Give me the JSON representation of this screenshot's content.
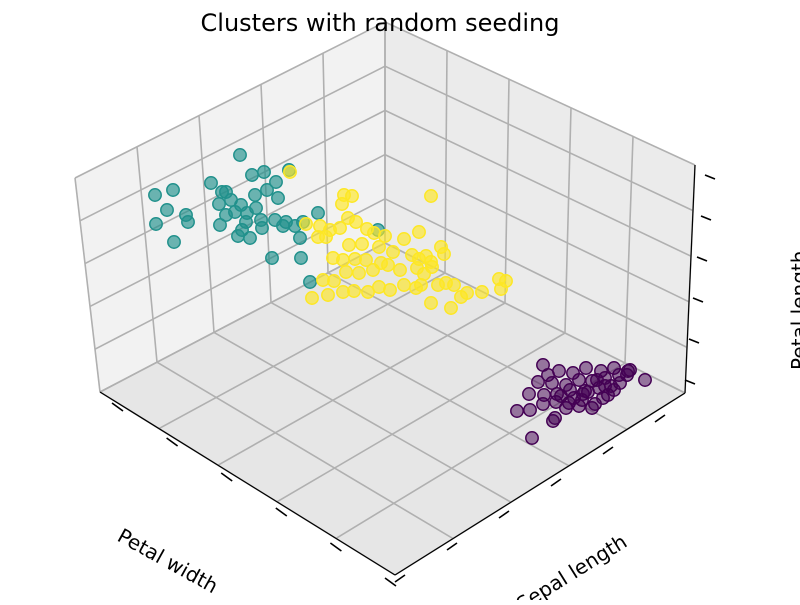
{
  "chart_data": {
    "type": "scatter",
    "title": "Clusters with random seeding",
    "xlabel": "Petal width",
    "ylabel": "Sepal length",
    "zlabel": "Petal length",
    "projection": "3d",
    "grid": true,
    "legend": "none",
    "colors": {
      "cluster_0": "#440154",
      "cluster_1": "#21918c",
      "cluster_2": "#fde725",
      "pane_light": "#f2f2f2",
      "pane_mid": "#ebebeb",
      "pane_dark": "#e6e6e6",
      "grid": "#b0b0b0"
    },
    "series": [
      {
        "color": "#440154",
        "points": [
          [
            543,
            365
          ],
          [
            559,
            371
          ],
          [
            573,
            373
          ],
          [
            586,
            368
          ],
          [
            601,
            371
          ],
          [
            614,
            368
          ],
          [
            628,
            371
          ],
          [
            645,
            380
          ],
          [
            538,
            382
          ],
          [
            552,
            383
          ],
          [
            566,
            385
          ],
          [
            579,
            380
          ],
          [
            592,
            381
          ],
          [
            605,
            378
          ],
          [
            619,
            375
          ],
          [
            630,
            370
          ],
          [
            529,
            394
          ],
          [
            544,
            395
          ],
          [
            557,
            394
          ],
          [
            570,
            390
          ],
          [
            585,
            391
          ],
          [
            599,
            388
          ],
          [
            611,
            386
          ],
          [
            620,
            383
          ],
          [
            517,
            411
          ],
          [
            530,
            410
          ],
          [
            543,
            404
          ],
          [
            556,
            402
          ],
          [
            569,
            403
          ],
          [
            582,
            400
          ],
          [
            595,
            404
          ],
          [
            608,
            395
          ],
          [
            555,
            418
          ],
          [
            566,
            408
          ],
          [
            579,
            406
          ],
          [
            592,
            408
          ],
          [
            603,
            398
          ],
          [
            614,
            390
          ],
          [
            597,
            380
          ],
          [
            574,
            398
          ],
          [
            532,
            438
          ],
          [
            553,
            421
          ],
          [
            588,
            392
          ],
          [
            561,
            396
          ],
          [
            605,
            386
          ],
          [
            548,
            375
          ],
          [
            627,
            375
          ],
          [
            583,
            394
          ]
        ]
      },
      {
        "color": "#21918c",
        "points": [
          [
            240,
            155
          ],
          [
            252,
            175
          ],
          [
            264,
            172
          ],
          [
            276,
            182
          ],
          [
            289,
            170
          ],
          [
            155,
            195
          ],
          [
            173,
            190
          ],
          [
            167,
            210
          ],
          [
            186,
            215
          ],
          [
            156,
            224
          ],
          [
            174,
            242
          ],
          [
            188,
            222
          ],
          [
            211,
            183
          ],
          [
            222,
            192
          ],
          [
            226,
            192
          ],
          [
            219,
            204
          ],
          [
            231,
            200
          ],
          [
            241,
            205
          ],
          [
            255,
            195
          ],
          [
            267,
            190
          ],
          [
            278,
            198
          ],
          [
            256,
            208
          ],
          [
            235,
            212
          ],
          [
            226,
            215
          ],
          [
            220,
            225
          ],
          [
            242,
            230
          ],
          [
            250,
            238
          ],
          [
            262,
            228
          ],
          [
            275,
            220
          ],
          [
            286,
            222
          ],
          [
            295,
            226
          ],
          [
            303,
            222
          ],
          [
            318,
            213
          ],
          [
            300,
            238
          ],
          [
            272,
            258
          ],
          [
            301,
            258
          ],
          [
            310,
            282
          ],
          [
            378,
            230
          ],
          [
            246,
            222
          ],
          [
            247,
            213
          ],
          [
            283,
            226
          ],
          [
            261,
            220
          ],
          [
            238,
            236
          ]
        ]
      },
      {
        "color": "#fde725",
        "points": [
          [
            290,
            172
          ],
          [
            344,
            195
          ],
          [
            352,
            196
          ],
          [
            431,
            196
          ],
          [
            342,
            204
          ],
          [
            348,
            218
          ],
          [
            306,
            224
          ],
          [
            320,
            226
          ],
          [
            330,
            230
          ],
          [
            318,
            237
          ],
          [
            326,
            237
          ],
          [
            340,
            228
          ],
          [
            356,
            222
          ],
          [
            367,
            229
          ],
          [
            374,
            233
          ],
          [
            385,
            236
          ],
          [
            404,
            239
          ],
          [
            419,
            232
          ],
          [
            349,
            245
          ],
          [
            362,
            244
          ],
          [
            379,
            247
          ],
          [
            393,
            252
          ],
          [
            412,
            255
          ],
          [
            426,
            256
          ],
          [
            441,
            247
          ],
          [
            444,
            254
          ],
          [
            333,
            258
          ],
          [
            343,
            260
          ],
          [
            355,
            259
          ],
          [
            366,
            260
          ],
          [
            381,
            263
          ],
          [
            400,
            270
          ],
          [
            417,
            268
          ],
          [
            432,
            267
          ],
          [
            323,
            280
          ],
          [
            334,
            281
          ],
          [
            346,
            272
          ],
          [
            359,
            273
          ],
          [
            373,
            270
          ],
          [
            388,
            265
          ],
          [
            419,
            259
          ],
          [
            431,
            262
          ],
          [
            446,
            283
          ],
          [
            454,
            285
          ],
          [
            467,
            293
          ],
          [
            482,
            292
          ],
          [
            499,
            279
          ],
          [
            506,
            281
          ],
          [
            501,
            289
          ],
          [
            312,
            298
          ],
          [
            328,
            295
          ],
          [
            343,
            292
          ],
          [
            354,
            291
          ],
          [
            368,
            292
          ],
          [
            379,
            287
          ],
          [
            390,
            290
          ],
          [
            404,
            285
          ],
          [
            421,
            285
          ],
          [
            431,
            303
          ],
          [
            451,
            308
          ],
          [
            461,
            297
          ],
          [
            424,
            274
          ],
          [
            416,
            288
          ],
          [
            438,
            285
          ]
        ]
      }
    ]
  }
}
